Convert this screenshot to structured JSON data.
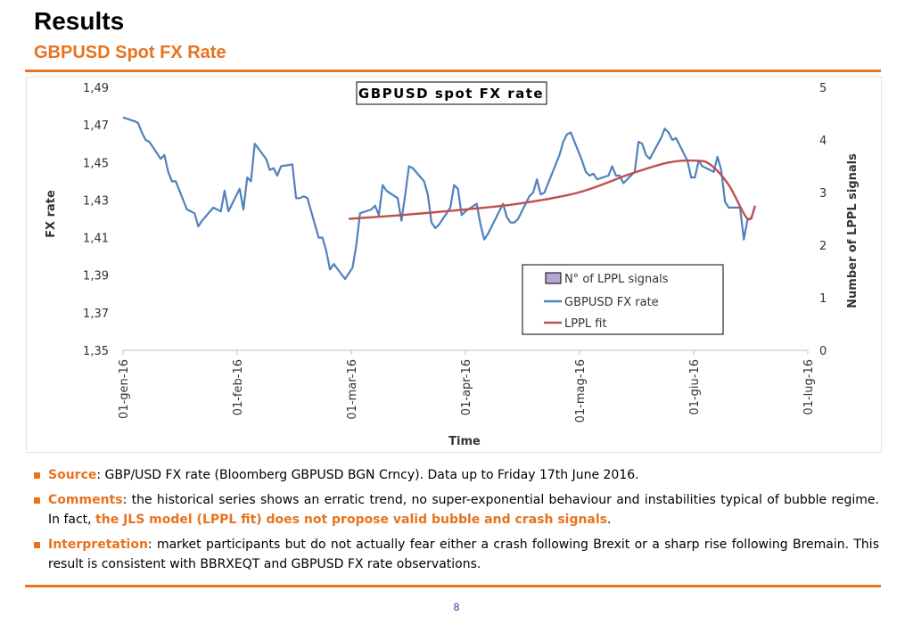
{
  "slide": {
    "title": "Results",
    "subtitle": "GBPUSD Spot FX Rate",
    "page_number": "8",
    "accent_color": "#e8731e"
  },
  "bullets": [
    {
      "lead": "Source",
      "text": ": GBP/USD FX rate (Bloomberg GBPUSD BGN Crncy). Data up to Friday 17th June 2016.",
      "highlight": "",
      "tail": ""
    },
    {
      "lead": "Comments",
      "text": ": the historical series shows an erratic trend, no super-exponential behaviour and instabilities typical of bubble regime. In fact, ",
      "highlight": "the JLS model (LPPL fit) does not propose valid bubble and crash signals",
      "tail": "."
    },
    {
      "lead": "Interpretation",
      "text": ": market participants but do not actually fear either a crash following Brexit or a sharp rise following Bremain. This result is consistent with BBRXEQT and GBPUSD FX rate observations.",
      "highlight": "",
      "tail": ""
    }
  ],
  "chart_data": {
    "type": "line",
    "title": "GBPUSD spot FX rate",
    "xlabel": "Time",
    "ylabel": "FX rate",
    "y2label": "Number of LPPL signals",
    "x_ticks": [
      "01-gen-16",
      "01-feb-16",
      "01-mar-16",
      "01-apr-16",
      "01-mag-16",
      "01-giu-16",
      "01-lug-16"
    ],
    "x_range_days": [
      0,
      182
    ],
    "ylim": [
      1.35,
      1.49
    ],
    "y_ticks": [
      "1,35",
      "1,37",
      "1,39",
      "1,41",
      "1,43",
      "1,45",
      "1,47",
      "1,49"
    ],
    "y2lim": [
      0,
      5
    ],
    "y2_ticks": [
      "0",
      "1",
      "2",
      "3",
      "4",
      "5"
    ],
    "grid": false,
    "legend_position": "bottom-right",
    "legend": [
      "N° of LPPL signals",
      "GBPUSD FX rate",
      "LPPL fit"
    ],
    "colors": {
      "fx": "#4f81bd",
      "fit": "#c0504d",
      "signals": "#8064a2"
    },
    "series": [
      {
        "name": "GBPUSD FX rate",
        "x": [
          "2016-01-01",
          "2016-01-04",
          "2016-01-05",
          "2016-01-06",
          "2016-01-07",
          "2016-01-08",
          "2016-01-11",
          "2016-01-12",
          "2016-01-13",
          "2016-01-14",
          "2016-01-15",
          "2016-01-18",
          "2016-01-19",
          "2016-01-20",
          "2016-01-21",
          "2016-01-22",
          "2016-01-25",
          "2016-01-26",
          "2016-01-27",
          "2016-01-28",
          "2016-01-29",
          "2016-02-01",
          "2016-02-02",
          "2016-02-03",
          "2016-02-04",
          "2016-02-05",
          "2016-02-08",
          "2016-02-09",
          "2016-02-10",
          "2016-02-11",
          "2016-02-12",
          "2016-02-15",
          "2016-02-16",
          "2016-02-17",
          "2016-02-18",
          "2016-02-19",
          "2016-02-22",
          "2016-02-23",
          "2016-02-24",
          "2016-02-25",
          "2016-02-26",
          "2016-02-29",
          "2016-03-01",
          "2016-03-02",
          "2016-03-03",
          "2016-03-04",
          "2016-03-07",
          "2016-03-08",
          "2016-03-09",
          "2016-03-10",
          "2016-03-11",
          "2016-03-14",
          "2016-03-15",
          "2016-03-16",
          "2016-03-17",
          "2016-03-18",
          "2016-03-21",
          "2016-03-22",
          "2016-03-23",
          "2016-03-24",
          "2016-03-25",
          "2016-03-28",
          "2016-03-29",
          "2016-03-30",
          "2016-03-31",
          "2016-04-01",
          "2016-04-04",
          "2016-04-05",
          "2016-04-06",
          "2016-04-07",
          "2016-04-08",
          "2016-04-11",
          "2016-04-12",
          "2016-04-13",
          "2016-04-14",
          "2016-04-15",
          "2016-04-18",
          "2016-04-19",
          "2016-04-20",
          "2016-04-21",
          "2016-04-22",
          "2016-04-25",
          "2016-04-26",
          "2016-04-27",
          "2016-04-28",
          "2016-04-29",
          "2016-05-02",
          "2016-05-03",
          "2016-05-04",
          "2016-05-05",
          "2016-05-06",
          "2016-05-09",
          "2016-05-10",
          "2016-05-11",
          "2016-05-12",
          "2016-05-13",
          "2016-05-16",
          "2016-05-17",
          "2016-05-18",
          "2016-05-19",
          "2016-05-20",
          "2016-05-23",
          "2016-05-24",
          "2016-05-25",
          "2016-05-26",
          "2016-05-27",
          "2016-05-30",
          "2016-05-31",
          "2016-06-01",
          "2016-06-02",
          "2016-06-03",
          "2016-06-06",
          "2016-06-07",
          "2016-06-08",
          "2016-06-09",
          "2016-06-10",
          "2016-06-13",
          "2016-06-14",
          "2016-06-15",
          "2016-06-16",
          "2016-06-17"
        ],
        "values": [
          1.474,
          1.472,
          1.471,
          1.466,
          1.462,
          1.461,
          1.452,
          1.454,
          1.445,
          1.44,
          1.44,
          1.425,
          1.424,
          1.423,
          1.416,
          1.419,
          1.426,
          1.425,
          1.424,
          1.435,
          1.424,
          1.436,
          1.425,
          1.442,
          1.44,
          1.46,
          1.452,
          1.446,
          1.447,
          1.443,
          1.448,
          1.449,
          1.431,
          1.431,
          1.432,
          1.431,
          1.41,
          1.41,
          1.403,
          1.393,
          1.396,
          1.388,
          1.391,
          1.394,
          1.406,
          1.423,
          1.425,
          1.427,
          1.422,
          1.438,
          1.435,
          1.431,
          1.419,
          1.433,
          1.448,
          1.447,
          1.44,
          1.433,
          1.418,
          1.415,
          1.417,
          1.426,
          1.438,
          1.436,
          1.422,
          1.424,
          1.428,
          1.417,
          1.409,
          1.412,
          1.416,
          1.428,
          1.421,
          1.418,
          1.418,
          1.42,
          1.432,
          1.434,
          1.441,
          1.433,
          1.434,
          1.449,
          1.454,
          1.461,
          1.465,
          1.466,
          1.451,
          1.445,
          1.443,
          1.444,
          1.441,
          1.443,
          1.448,
          1.443,
          1.443,
          1.439,
          1.445,
          1.461,
          1.46,
          1.454,
          1.452,
          1.463,
          1.468,
          1.466,
          1.462,
          1.463,
          1.451,
          1.442,
          1.442,
          1.451,
          1.448,
          1.445,
          1.453,
          1.446,
          1.429,
          1.426,
          1.426,
          1.409,
          1.42,
          1.42,
          1.427
        ],
        "legend": "GBPUSD FX rate"
      },
      {
        "name": "LPPL fit",
        "x": [
          "2016-03-01",
          "2016-03-15",
          "2016-04-01",
          "2016-04-15",
          "2016-05-01",
          "2016-05-15",
          "2016-05-25",
          "2016-06-01",
          "2016-06-05",
          "2016-06-10",
          "2016-06-15",
          "2016-06-17"
        ],
        "values": [
          1.42,
          1.422,
          1.425,
          1.428,
          1.434,
          1.444,
          1.45,
          1.451,
          1.449,
          1.438,
          1.42,
          1.427
        ]
      }
    ],
    "lppl_signals": []
  }
}
